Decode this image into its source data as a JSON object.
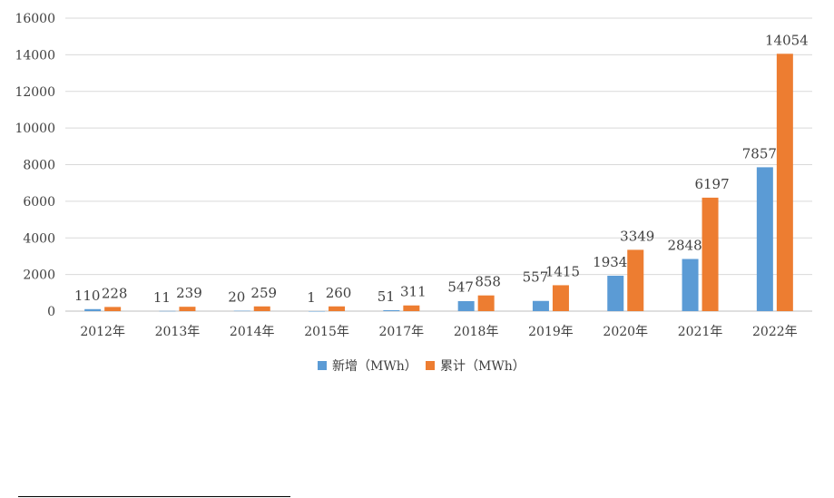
{
  "chart_data": {
    "type": "bar",
    "title": "",
    "xlabel": "",
    "ylabel": "",
    "ylim": [
      0,
      16000
    ],
    "yticks": [
      0,
      2000,
      4000,
      6000,
      8000,
      10000,
      12000,
      14000,
      16000
    ],
    "grid": true,
    "legend_position": "bottom",
    "categories": [
      "2012年",
      "2013年",
      "2014年",
      "2015年",
      "2017年",
      "2018年",
      "2019年",
      "2020年",
      "2021年",
      "2022年"
    ],
    "series": [
      {
        "name": "新增（MWh）",
        "color": "#5B9BD5",
        "values": [
          110,
          11,
          20,
          1,
          51,
          547,
          557,
          1934,
          2848,
          7857
        ]
      },
      {
        "name": "累计（MWh）",
        "color": "#ED7D31",
        "values": [
          228,
          239,
          259,
          260,
          311,
          858,
          1415,
          3349,
          6197,
          14054
        ]
      }
    ]
  }
}
